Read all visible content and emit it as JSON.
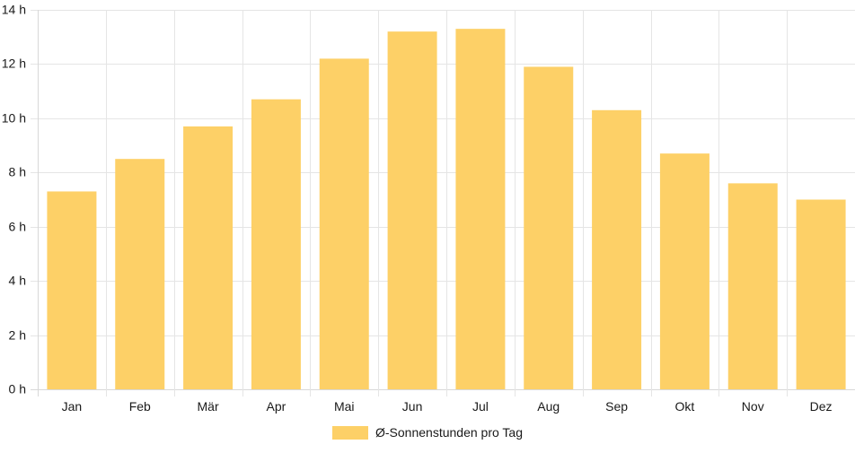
{
  "chart_data": {
    "type": "bar",
    "categories": [
      "Jan",
      "Feb",
      "Mär",
      "Apr",
      "Mai",
      "Jun",
      "Jul",
      "Aug",
      "Sep",
      "Okt",
      "Nov",
      "Dez"
    ],
    "series": [
      {
        "name": "Ø-Sonnenstunden pro Tag",
        "values": [
          7.3,
          8.5,
          9.7,
          10.7,
          12.2,
          13.2,
          13.3,
          11.9,
          10.3,
          8.7,
          7.6,
          7.0
        ],
        "color": "#fdd067"
      }
    ],
    "y_ticks": [
      "0 h",
      "2 h",
      "4 h",
      "6 h",
      "8 h",
      "10 h",
      "12 h",
      "14 h"
    ],
    "ylim": [
      0,
      14
    ],
    "grid": true,
    "legend_position": "bottom",
    "grid_color": "#e5e5e5",
    "axis_color": "#d8d8d8",
    "text_color": "#1a1a1a"
  }
}
